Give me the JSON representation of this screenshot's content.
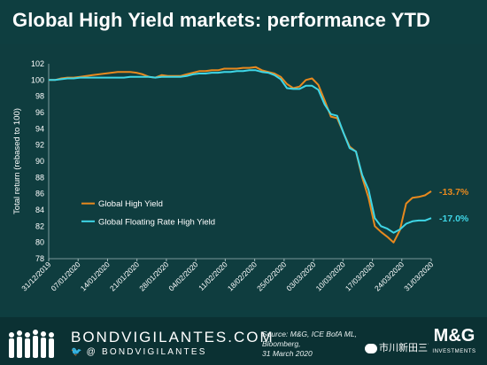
{
  "header": {
    "title": "Global High Yield markets: performance YTD"
  },
  "footer": {
    "brand": "BONDVIGILANTES.COM",
    "twitter_handle": "@ BONDVIGILANTES",
    "source_line1": "Source: M&G, ICE BofA ML, Bloomberg,",
    "source_line2": "31 March 2020",
    "wechat_label": "市川新田三丁目",
    "logo_text": "M&G",
    "logo_sub": "INVESTMENTS"
  },
  "colors": {
    "background": "#0e3e40",
    "series_global": "#e8891e",
    "series_frn": "#3fd6e6",
    "text": "#ffffff"
  },
  "chart_data": {
    "type": "line",
    "ylabel": "Total return (rebased to 100)",
    "xlabel": "",
    "ylim": [
      78,
      102
    ],
    "yticks": [
      78,
      80,
      82,
      84,
      86,
      88,
      90,
      92,
      94,
      96,
      98,
      100,
      102
    ],
    "xtick_labels": [
      "31/12/2019",
      "07/01/2020",
      "14/01/2020",
      "21/01/2020",
      "28/01/2020",
      "04/02/2020",
      "11/02/2020",
      "18/02/2020",
      "25/02/2020",
      "03/03/2020",
      "10/03/2020",
      "17/03/2020",
      "24/03/2020",
      "31/03/2020"
    ],
    "legend_position": "left-middle",
    "grid": false,
    "series": [
      {
        "name": "Global High Yield",
        "color": "#e8891e",
        "end_label": "-13.7%",
        "values": [
          100.0,
          100.0,
          100.2,
          100.3,
          100.3,
          100.4,
          100.5,
          100.6,
          100.7,
          100.8,
          100.9,
          101.0,
          101.0,
          101.0,
          100.9,
          100.7,
          100.4,
          100.3,
          100.6,
          100.5,
          100.5,
          100.5,
          100.7,
          100.9,
          101.1,
          101.1,
          101.2,
          101.2,
          101.4,
          101.4,
          101.4,
          101.5,
          101.5,
          101.6,
          101.2,
          101.0,
          100.8,
          100.4,
          99.5,
          99.0,
          99.2,
          100.0,
          100.2,
          99.4,
          97.5,
          95.5,
          95.3,
          93.5,
          91.8,
          91.2,
          88.0,
          85.5,
          82.0,
          81.3,
          80.7,
          80.0,
          81.5,
          84.8,
          85.5,
          85.6,
          85.8,
          86.3
        ]
      },
      {
        "name": "Global Floating Rate High Yield",
        "color": "#3fd6e6",
        "end_label": "-17.0%",
        "values": [
          100.0,
          100.0,
          100.1,
          100.2,
          100.2,
          100.3,
          100.3,
          100.3,
          100.3,
          100.3,
          100.3,
          100.3,
          100.3,
          100.4,
          100.4,
          100.4,
          100.4,
          100.3,
          100.4,
          100.4,
          100.4,
          100.4,
          100.5,
          100.7,
          100.8,
          100.8,
          100.9,
          100.9,
          101.0,
          101.0,
          101.1,
          101.1,
          101.2,
          101.2,
          101.0,
          100.9,
          100.6,
          100.1,
          99.0,
          98.9,
          98.9,
          99.3,
          99.3,
          98.8,
          97.0,
          95.8,
          95.6,
          93.5,
          91.6,
          91.2,
          88.3,
          86.5,
          83.0,
          82.0,
          81.7,
          81.2,
          81.6,
          82.3,
          82.6,
          82.7,
          82.7,
          83.0
        ]
      }
    ]
  }
}
